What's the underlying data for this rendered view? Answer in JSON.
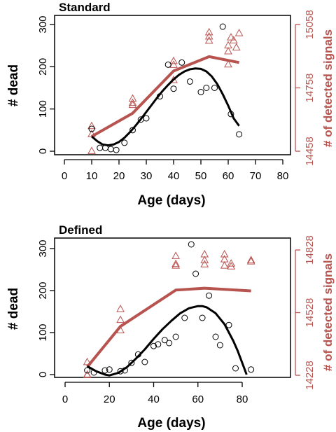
{
  "chart_data": [
    {
      "type": "scatter",
      "title": "Standard",
      "xlabel": "Age (days)",
      "ylabel": "# dead",
      "ylabel_right": "# of detected signals",
      "xlim": [
        0,
        80
      ],
      "xticks": [
        0,
        10,
        20,
        30,
        40,
        50,
        60,
        70,
        80
      ],
      "ylim_left": [
        0,
        300
      ],
      "yticks_left": [
        0,
        100,
        200,
        300
      ],
      "ylim_right": [
        14458,
        15058
      ],
      "yticks_right": [
        14458,
        14758,
        15058
      ],
      "right_color": "#b85450",
      "left_color": "#000000",
      "dead_points": {
        "x": [
          10,
          13,
          15,
          17,
          19,
          22,
          25,
          28,
          30,
          35,
          38,
          40,
          43,
          46,
          50,
          52,
          55,
          58,
          61,
          64
        ],
        "y": [
          53,
          8,
          8,
          5,
          3,
          20,
          50,
          75,
          78,
          130,
          205,
          148,
          210,
          165,
          140,
          150,
          150,
          295,
          88,
          40
        ]
      },
      "dead_fit": {
        "x": [
          10,
          12,
          14,
          16,
          18,
          20,
          22,
          24,
          26,
          28,
          30,
          32,
          34,
          36,
          38,
          40,
          42,
          44,
          46,
          48,
          50,
          52,
          54,
          56,
          58,
          60,
          62,
          64
        ],
        "y": [
          35,
          24,
          16,
          14,
          16,
          22,
          32,
          45,
          60,
          76,
          93,
          110,
          127,
          143,
          157,
          170,
          181,
          189,
          194,
          196,
          195,
          189,
          177,
          159,
          135,
          108,
          78,
          60
        ]
      },
      "signals_points": {
        "x": [
          10,
          10,
          10,
          25,
          25,
          25,
          40,
          40,
          40,
          53,
          53,
          53,
          60,
          60,
          60,
          61,
          62,
          63,
          64
        ],
        "y": [
          14578,
          14540,
          14460,
          14708,
          14688,
          14678,
          14886,
          14868,
          14796,
          15022,
          15002,
          14982,
          14960,
          14932,
          14870,
          14998,
          14984,
          14950,
          15018
        ]
      },
      "signals_fit": {
        "x": [
          10,
          25,
          40,
          53,
          64
        ],
        "y": [
          14528,
          14638,
          14838,
          14906,
          14878
        ]
      }
    },
    {
      "type": "scatter",
      "title": "Defined",
      "xlabel": "Age (days)",
      "ylabel": "# dead",
      "ylabel_right": "# of detected signals",
      "xlim": [
        0,
        80
      ],
      "xticks": [
        0,
        20,
        40,
        60,
        80
      ],
      "ylim_left": [
        0,
        300
      ],
      "yticks_left": [
        0,
        100,
        200,
        300
      ],
      "ylim_right": [
        14228,
        14828
      ],
      "yticks_right": [
        14228,
        14528,
        14828
      ],
      "right_color": "#b85450",
      "left_color": "#000000",
      "dead_points": {
        "x": [
          10,
          13,
          18,
          20,
          25,
          27,
          30,
          33,
          36,
          40,
          42,
          45,
          47,
          50,
          54,
          57,
          59,
          62,
          65,
          68,
          70,
          74,
          77,
          84
        ],
        "y": [
          10,
          5,
          10,
          12,
          8,
          10,
          28,
          48,
          30,
          68,
          72,
          82,
          75,
          90,
          135,
          310,
          240,
          135,
          188,
          90,
          70,
          118,
          15,
          12
        ]
      },
      "dead_fit": {
        "x": [
          10,
          14,
          18,
          20,
          24,
          28,
          32,
          36,
          40,
          44,
          48,
          52,
          56,
          60,
          62,
          64,
          68,
          72,
          76,
          78,
          80,
          82
        ],
        "y": [
          20,
          8,
          0,
          -2,
          4,
          18,
          38,
          60,
          85,
          108,
          128,
          146,
          158,
          163,
          163,
          160,
          146,
          120,
          80,
          56,
          28,
          0
        ]
      },
      "signals_points": {
        "x": [
          10,
          10,
          10,
          25,
          25,
          25,
          50,
          50,
          50,
          63,
          63,
          63,
          72,
          72,
          72,
          75,
          75,
          84,
          84
        ],
        "y": [
          14292,
          14230,
          14232,
          14546,
          14494,
          14444,
          14800,
          14762,
          14754,
          14808,
          14780,
          14760,
          14808,
          14784,
          14754,
          14764,
          14750,
          14774,
          14780
        ]
      },
      "signals_fit": {
        "x": [
          10,
          25,
          50,
          63,
          84
        ],
        "y": [
          14268,
          14462,
          14636,
          14645,
          14632
        ]
      }
    }
  ]
}
